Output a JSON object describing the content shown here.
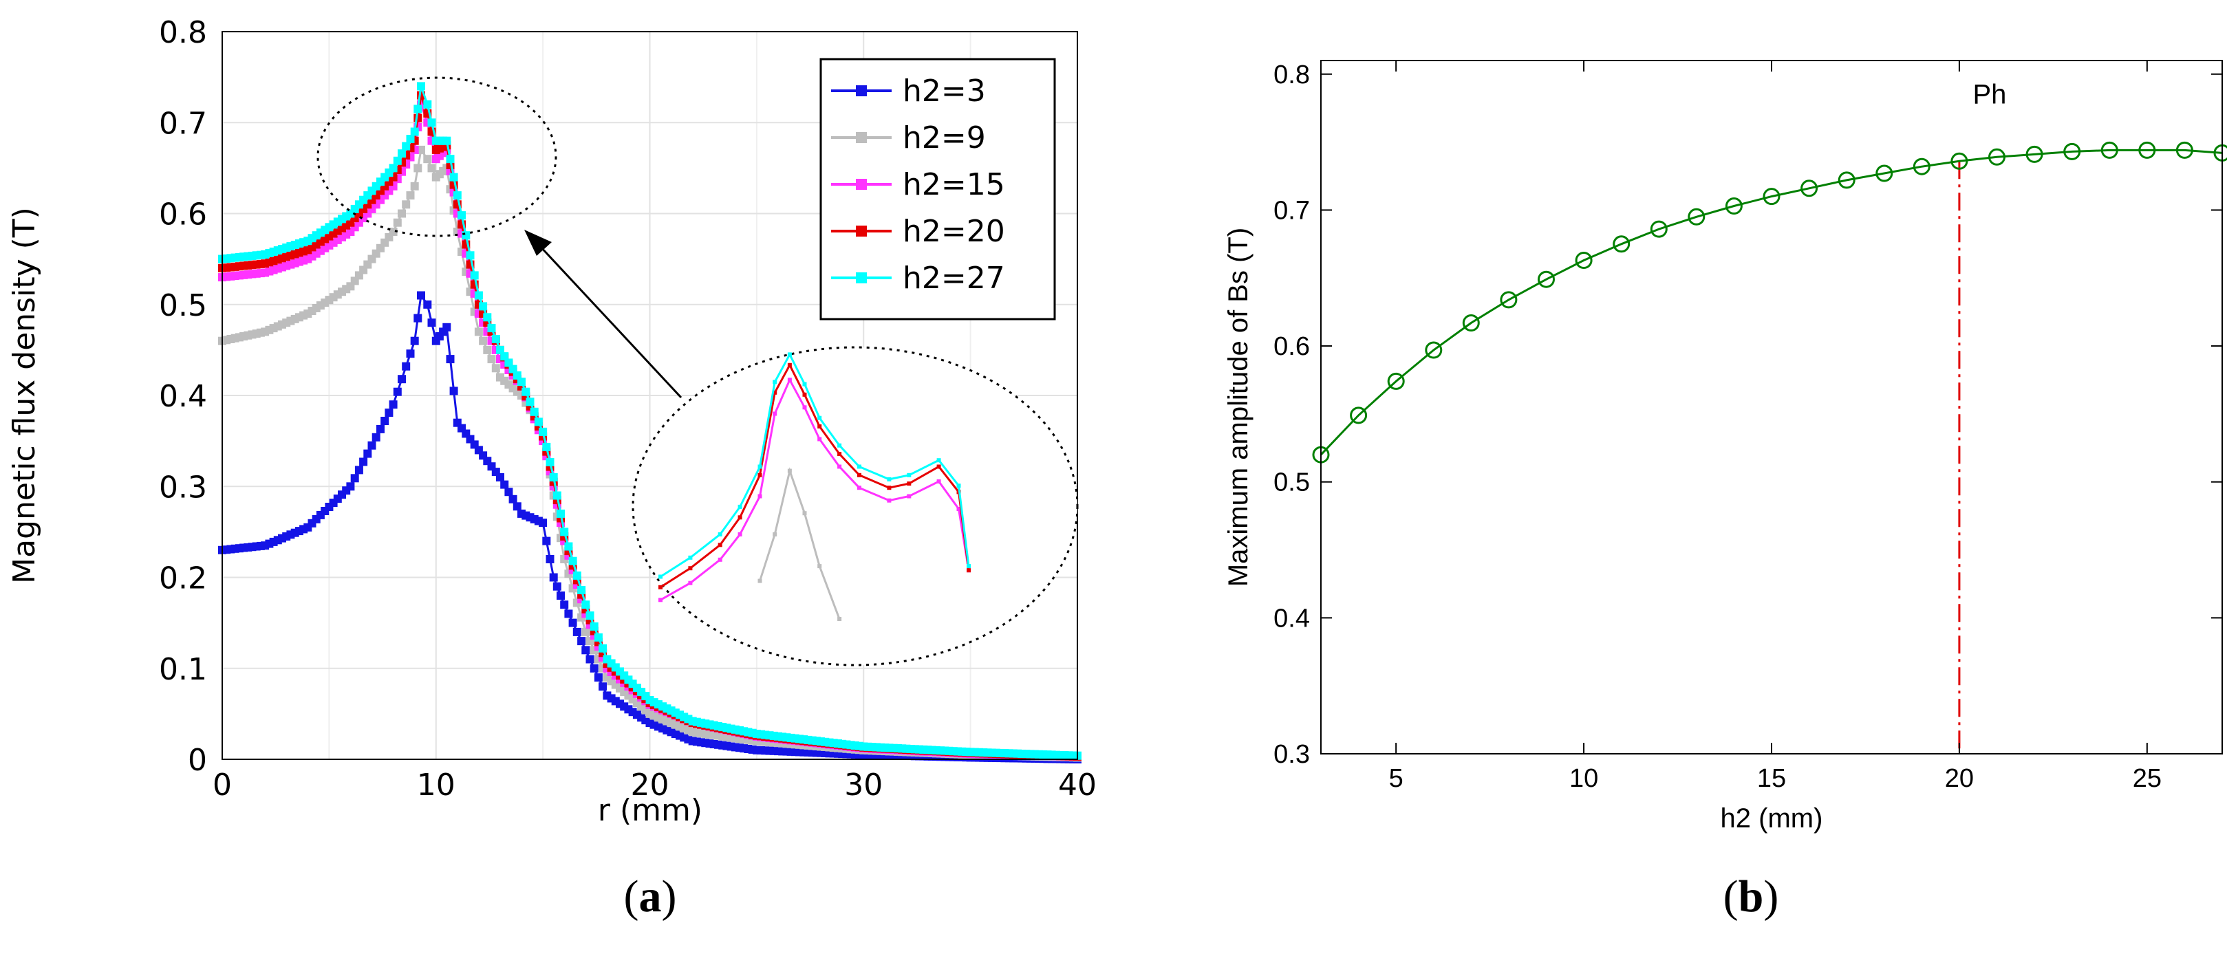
{
  "chart_data": [
    {
      "type": "line",
      "panel": "(a)",
      "caption_open": "(",
      "caption_letter": "a",
      "caption_close": ")",
      "xlabel": "r (mm)",
      "ylabel": "Magnetic flux density (T)",
      "xlim": [
        0,
        40
      ],
      "ylim": [
        0,
        0.8
      ],
      "xticks": [
        "0",
        "10",
        "20",
        "30",
        "40"
      ],
      "yticks": [
        "0",
        "0.1",
        "0.2",
        "0.3",
        "0.4",
        "0.5",
        "0.6",
        "0.7",
        "0.8"
      ],
      "grid": true,
      "legend_position": "top-right",
      "series": [
        {
          "name": "h2=3",
          "color": "#1414e6",
          "x": [
            0,
            2,
            4,
            6,
            8,
            9,
            9.3,
            9.6,
            10,
            10.5,
            11,
            12,
            13,
            14,
            15,
            15.5,
            16,
            17,
            18,
            20,
            22,
            25,
            30,
            35,
            40
          ],
          "y": [
            0.23,
            0.235,
            0.255,
            0.3,
            0.39,
            0.46,
            0.51,
            0.5,
            0.46,
            0.475,
            0.37,
            0.34,
            0.31,
            0.27,
            0.26,
            0.2,
            0.17,
            0.12,
            0.07,
            0.04,
            0.02,
            0.01,
            0.005,
            0.002,
            0.0
          ]
        },
        {
          "name": "h2=9",
          "color": "#bdbdbd",
          "x": [
            0,
            2,
            4,
            6,
            8,
            9,
            9.3,
            9.6,
            10,
            10.5,
            11,
            12,
            13,
            14,
            15,
            15.5,
            16,
            17,
            18,
            20,
            22,
            25,
            30,
            35,
            40
          ],
          "y": [
            0.46,
            0.47,
            0.49,
            0.52,
            0.58,
            0.63,
            0.67,
            0.66,
            0.64,
            0.65,
            0.58,
            0.47,
            0.42,
            0.4,
            0.36,
            0.29,
            0.22,
            0.14,
            0.09,
            0.05,
            0.03,
            0.02,
            0.01,
            0.005,
            0.002
          ]
        },
        {
          "name": "h2=15",
          "color": "#ff33ff",
          "x": [
            0,
            2,
            4,
            6,
            8,
            9,
            9.3,
            9.6,
            10,
            10.5,
            11,
            12,
            13,
            14,
            15,
            15.5,
            16,
            17,
            18,
            20,
            22,
            25,
            30,
            35,
            40
          ],
          "y": [
            0.53,
            0.535,
            0.55,
            0.58,
            0.63,
            0.67,
            0.72,
            0.7,
            0.66,
            0.67,
            0.6,
            0.49,
            0.44,
            0.41,
            0.35,
            0.3,
            0.24,
            0.16,
            0.1,
            0.06,
            0.04,
            0.025,
            0.012,
            0.006,
            0.003
          ]
        },
        {
          "name": "h2=20",
          "color": "#e60000",
          "x": [
            0,
            2,
            4,
            6,
            8,
            9,
            9.3,
            9.6,
            10,
            10.5,
            11,
            12,
            13,
            14,
            15,
            15.5,
            16,
            17,
            18,
            20,
            22,
            25,
            30,
            35,
            40
          ],
          "y": [
            0.54,
            0.545,
            0.56,
            0.59,
            0.64,
            0.68,
            0.73,
            0.71,
            0.67,
            0.675,
            0.61,
            0.5,
            0.45,
            0.41,
            0.355,
            0.305,
            0.245,
            0.165,
            0.105,
            0.062,
            0.04,
            0.026,
            0.013,
            0.007,
            0.003
          ]
        },
        {
          "name": "h2=27",
          "color": "#00ffff",
          "x": [
            0,
            2,
            4,
            6,
            8,
            9,
            9.3,
            9.6,
            10,
            10.5,
            11,
            12,
            13,
            14,
            15,
            15.5,
            16,
            17,
            18,
            20,
            22,
            25,
            30,
            35,
            40
          ],
          "y": [
            0.55,
            0.555,
            0.57,
            0.6,
            0.65,
            0.69,
            0.74,
            0.72,
            0.68,
            0.68,
            0.62,
            0.51,
            0.45,
            0.415,
            0.36,
            0.31,
            0.25,
            0.17,
            0.11,
            0.065,
            0.042,
            0.028,
            0.014,
            0.008,
            0.004
          ]
        }
      ],
      "inset": {
        "description_shape": "zoom",
        "x": [
          7.0,
          7.6,
          8.2,
          8.6,
          9.0,
          9.3,
          9.6,
          9.9,
          10.2,
          10.6,
          11.0,
          11.6,
          12.0,
          12.6,
          13.0,
          13.2
        ],
        "series": [
          {
            "name": "h2=9",
            "color": "#bdbdbd",
            "y": [
              null,
              null,
              null,
              null,
              0.618,
              0.64,
              0.67,
              0.65,
              0.625,
              0.6,
              null,
              null,
              null,
              null,
              null,
              null
            ]
          },
          {
            "name": "h2=15",
            "color": "#ff33ff",
            "y": [
              0.609,
              0.617,
              0.628,
              0.64,
              0.658,
              0.697,
              0.713,
              0.7,
              0.685,
              0.672,
              0.662,
              0.656,
              0.658,
              0.665,
              0.652,
              0.623
            ]
          },
          {
            "name": "h2=20",
            "color": "#e60000",
            "y": [
              0.615,
              0.624,
              0.635,
              0.648,
              0.668,
              0.707,
              0.72,
              0.706,
              0.691,
              0.678,
              0.668,
              0.662,
              0.664,
              0.672,
              0.66,
              0.623
            ]
          },
          {
            "name": "h2=27",
            "color": "#00ffff",
            "y": [
              0.62,
              0.629,
              0.64,
              0.653,
              0.672,
              0.712,
              0.725,
              0.711,
              0.695,
              0.682,
              0.672,
              0.666,
              0.668,
              0.675,
              0.663,
              0.625
            ]
          }
        ]
      }
    },
    {
      "type": "line",
      "panel": "(b)",
      "caption_open": "(",
      "caption_letter": "b",
      "caption_close": ")",
      "xlabel": "h2 (mm)",
      "ylabel": "Maximum amplitude of Bs (T)",
      "xlim": [
        3,
        27
      ],
      "ylim": [
        0.3,
        0.81
      ],
      "xticks": [
        "5",
        "10",
        "15",
        "20",
        "25"
      ],
      "yticks": [
        "0.3",
        "0.4",
        "0.5",
        "0.6",
        "0.7",
        "0.8"
      ],
      "annotation": {
        "text": "Ph",
        "x": 20,
        "y": 0.752,
        "line_x": 20
      },
      "series": [
        {
          "name": "Maximum amplitude of Bs",
          "color": "#008000",
          "x": [
            3,
            4,
            5,
            6,
            7,
            8,
            9,
            10,
            11,
            12,
            13,
            14,
            15,
            16,
            17,
            18,
            19,
            20,
            21,
            22,
            23,
            24,
            25,
            26,
            27
          ],
          "y": [
            0.52,
            0.549,
            0.574,
            0.597,
            0.617,
            0.634,
            0.649,
            0.663,
            0.675,
            0.686,
            0.695,
            0.703,
            0.71,
            0.716,
            0.722,
            0.727,
            0.732,
            0.736,
            0.739,
            0.741,
            0.743,
            0.744,
            0.744,
            0.744,
            0.742
          ]
        }
      ]
    }
  ]
}
